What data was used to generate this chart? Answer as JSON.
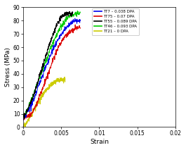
{
  "title": "",
  "xlabel": "Strain",
  "ylabel": "Stress (MPa)",
  "xlim": [
    0,
    0.02
  ],
  "ylim": [
    0,
    90
  ],
  "xticks": [
    0,
    0.005,
    0.01,
    0.015,
    0.02
  ],
  "yticks": [
    0,
    10,
    20,
    30,
    40,
    50,
    60,
    70,
    80,
    90
  ],
  "legend": [
    {
      "label": "TT7 – 0.038 DPA",
      "color": "#0000ee"
    },
    {
      "label": "TT75 – 0.07 DPA",
      "color": "#dd0000"
    },
    {
      "label": "TT55 – 0.089 DPA",
      "color": "#000000"
    },
    {
      "label": "TT46 – 0.093 DPA",
      "color": "#00cc00"
    },
    {
      "label": "TT21 – 0 DPA",
      "color": "#cccc00"
    }
  ],
  "background": "#ffffff",
  "curves": {
    "TT7": {
      "color": "#0000ee",
      "strain": [
        0.0,
        0.0003,
        0.0008,
        0.0013,
        0.0018,
        0.0023,
        0.003,
        0.0035,
        0.004,
        0.0045,
        0.005,
        0.0055,
        0.006,
        0.0065,
        0.007,
        0.0075
      ],
      "stress": [
        7.5,
        9.0,
        14.0,
        20.0,
        28.0,
        36.0,
        46.0,
        53.0,
        60.0,
        65.0,
        70.0,
        74.0,
        77.0,
        79.0,
        80.0,
        80.5
      ]
    },
    "TT75": {
      "color": "#dd0000",
      "strain": [
        0.0,
        0.0003,
        0.0006,
        0.001,
        0.0013,
        0.0018,
        0.0023,
        0.003,
        0.0035,
        0.004,
        0.0045,
        0.005,
        0.0055,
        0.006,
        0.0065,
        0.007,
        0.0075
      ],
      "stress": [
        7.0,
        8.0,
        8.5,
        10.0,
        12.0,
        18.0,
        26.0,
        36.0,
        44.0,
        52.0,
        59.0,
        64.0,
        68.0,
        71.0,
        73.0,
        74.5,
        75.0
      ]
    },
    "TT55": {
      "color": "#000000",
      "strain": [
        0.0,
        0.0003,
        0.0008,
        0.0013,
        0.0018,
        0.0023,
        0.003,
        0.0035,
        0.004,
        0.0045,
        0.005,
        0.0055,
        0.006,
        0.0065
      ],
      "stress": [
        8.0,
        10.0,
        16.0,
        23.0,
        32.0,
        42.0,
        54.0,
        63.0,
        71.0,
        78.0,
        83.0,
        85.0,
        85.5,
        85.5
      ]
    },
    "TT46": {
      "color": "#00cc00",
      "strain": [
        0.0,
        0.0003,
        0.0008,
        0.0013,
        0.0018,
        0.0023,
        0.003,
        0.0035,
        0.004,
        0.0045,
        0.005,
        0.0055,
        0.006,
        0.0065,
        0.007,
        0.0075
      ],
      "stress": [
        8.0,
        10.5,
        17.0,
        24.0,
        32.0,
        40.0,
        50.0,
        58.0,
        65.0,
        71.0,
        76.0,
        80.0,
        83.0,
        84.5,
        85.0,
        85.5
      ]
    },
    "TT21": {
      "color": "#cccc00",
      "strain": [
        0.0,
        0.0005,
        0.001,
        0.0015,
        0.002,
        0.0025,
        0.003,
        0.0035,
        0.004,
        0.0045,
        0.005,
        0.0055
      ],
      "stress": [
        0.0,
        4.0,
        9.0,
        14.0,
        19.0,
        24.0,
        28.0,
        31.0,
        33.5,
        35.0,
        36.0,
        36.5
      ]
    }
  }
}
